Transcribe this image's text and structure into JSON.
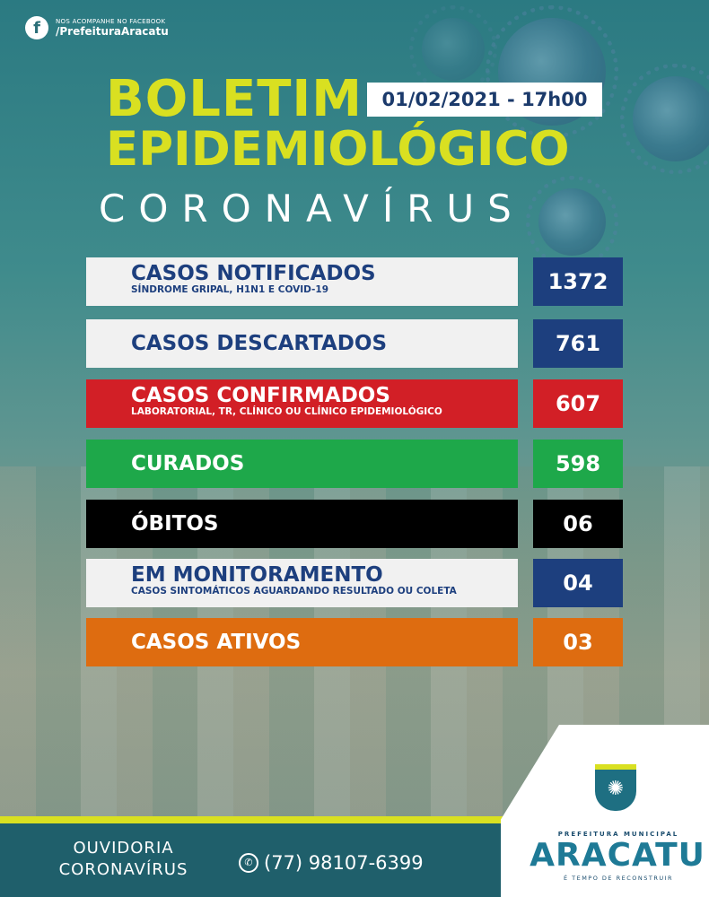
{
  "header": {
    "facebook_small": "NOS ACOMPANHE NO FACEBOOK",
    "facebook_handle": "/PrefeituraAracatu",
    "title_line1": "BOLETIM",
    "title_line2": "EPIDEMIOLÓGICO",
    "date": "01/02/2021 - 17h00",
    "subtitle": "CORONAVÍRUS"
  },
  "stats": [
    {
      "label": "CASOS NOTIFICADOS",
      "sub": "SÍNDROME GRIPAL, H1N1 E COVID-19",
      "value": "1372",
      "row_bg": "#f1f1f1",
      "label_color": "#1d3f7e",
      "value_bg": "#1d3f7e"
    },
    {
      "label": "CASOS DESCARTADOS",
      "sub": "",
      "value": "761",
      "row_bg": "#f1f1f1",
      "label_color": "#1d3f7e",
      "value_bg": "#1d3f7e"
    },
    {
      "label": "CASOS CONFIRMADOS",
      "sub": "LABORATORIAL, TR, CLÍNICO OU CLÍNICO EPIDEMIOLÓGICO",
      "value": "607",
      "row_bg": "#d21f26",
      "label_color": "#ffffff",
      "value_bg": "#d21f26"
    },
    {
      "label": "CURADOS",
      "sub": "",
      "value": "598",
      "row_bg": "#1ea84a",
      "label_color": "#ffffff",
      "value_bg": "#1ea84a"
    },
    {
      "label": "ÓBITOS",
      "sub": "",
      "value": "06",
      "row_bg": "#000000",
      "label_color": "#ffffff",
      "value_bg": "#000000"
    },
    {
      "label": "EM MONITORAMENTO",
      "sub": "CASOS SINTOMÁTICOS AGUARDANDO RESULTADO OU COLETA",
      "value": "04",
      "row_bg": "#f1f1f1",
      "label_color": "#1d3f7e",
      "value_bg": "#1d3f7e"
    },
    {
      "label": "CASOS ATIVOS",
      "sub": "",
      "value": "03",
      "row_bg": "#de6c10",
      "label_color": "#ffffff",
      "value_bg": "#de6c10"
    }
  ],
  "footer": {
    "ouvidoria_line1": "OUVIDORIA",
    "ouvidoria_line2": "CORONAVÍRUS",
    "phone": "(77) 98107-6399"
  },
  "logo": {
    "small": "PREFEITURA MUNICIPAL",
    "name": "ARACATU",
    "tagline": "É TEMPO DE RECONSTRUIR"
  },
  "icons": {
    "facebook": "facebook-icon",
    "whatsapp": "whatsapp-icon",
    "crest": "crest-icon"
  }
}
